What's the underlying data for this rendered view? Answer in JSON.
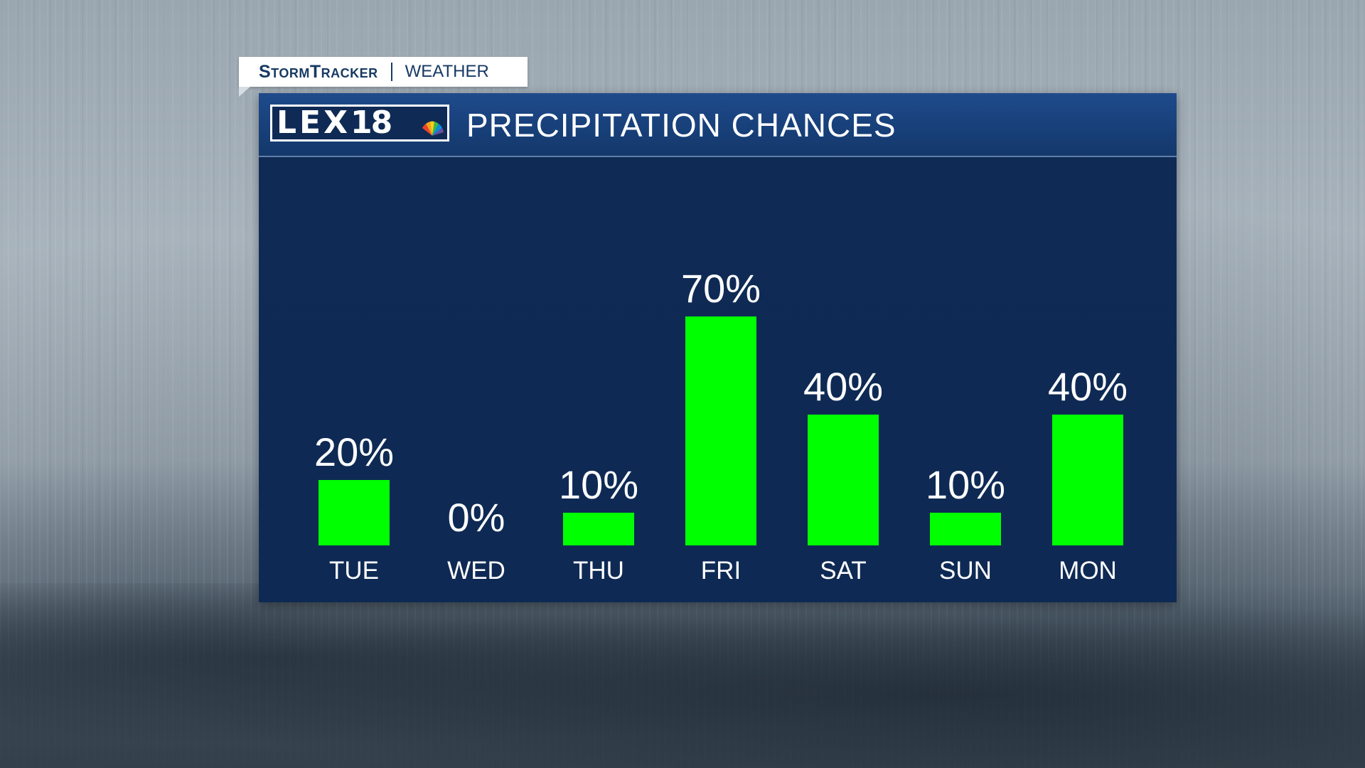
{
  "tag": {
    "brand": "StormTracker",
    "section": "WEATHER"
  },
  "header": {
    "logo_text": "LEX",
    "logo_number": "18",
    "title": "PRECIPITATION CHANCES"
  },
  "colors": {
    "bar": "#00ff00",
    "panel": "#0e2a54",
    "header": "#1a4480",
    "text": "#ffffff"
  },
  "chart_data": {
    "type": "bar",
    "title": "PRECIPITATION CHANCES",
    "categories": [
      "TUE",
      "WED",
      "THU",
      "FRI",
      "SAT",
      "SUN",
      "MON"
    ],
    "values": [
      20,
      0,
      10,
      70,
      40,
      10,
      40
    ],
    "value_labels": [
      "20%",
      "0%",
      "10%",
      "70%",
      "40%",
      "10%",
      "40%"
    ],
    "unit": "%",
    "ylim": [
      0,
      100
    ],
    "grid": false
  }
}
